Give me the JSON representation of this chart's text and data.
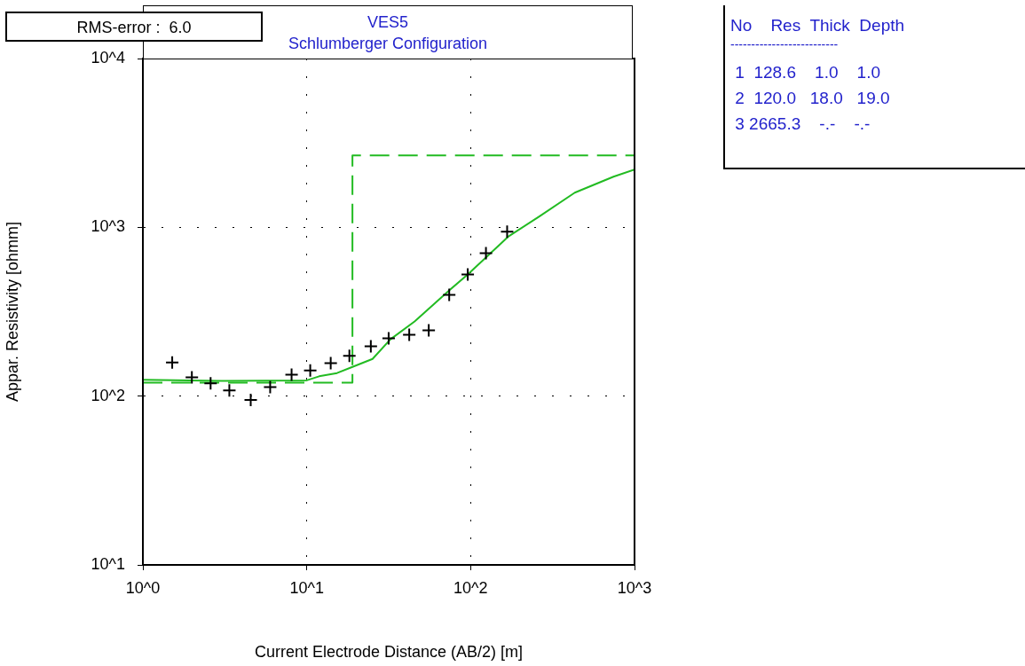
{
  "chart_data": {
    "type": "scatter",
    "title": "VES5",
    "subtitle": "Schlumberger Configuration",
    "xlabel": "Current Electrode Distance (AB/2) [m]",
    "ylabel": "Appar. Resistivity [ohmm]",
    "series": [
      {
        "color": "#000000",
        "marker": "cross",
        "x": [
          1.51,
          1.99,
          2.59,
          3.37,
          4.55,
          5.98,
          8.08,
          10.5,
          14.0,
          18.2,
          24.6,
          31.6,
          42.2,
          55.5,
          74,
          96,
          124,
          167
        ],
        "values": [
          158,
          129,
          119,
          108,
          95,
          113,
          134,
          142,
          157,
          173,
          197,
          220,
          231,
          245,
          398,
          526,
          703,
          942
        ]
      },
      {
        "type": "line",
        "color": "#22bb22",
        "marker": "none",
        "line_style": "solid",
        "x": [
          1,
          3,
          10,
          11.9,
          15.3,
          19,
          25.2,
          32.4,
          45.5,
          75,
          96,
          171,
          261,
          432,
          744,
          1000
        ],
        "values": [
          125,
          123,
          124,
          131,
          137,
          149,
          166,
          217,
          277,
          428,
          526,
          886,
          1156,
          1604,
          1995,
          2198
        ]
      },
      {
        "type": "line",
        "color": "#22bb22",
        "marker": "none",
        "line_style": "dashed",
        "x": [
          1,
          19,
          19,
          1000
        ],
        "values": [
          120,
          120,
          2665.3,
          2665.3
        ]
      }
    ],
    "log": "xy",
    "xlim": [
      1,
      1000
    ],
    "ylim": [
      10,
      10000
    ],
    "xticks": [
      {
        "value": 1,
        "label": "10^0"
      },
      {
        "value": 10,
        "label": "10^1"
      },
      {
        "value": 100,
        "label": "10^2"
      },
      {
        "value": 1000,
        "label": "10^3"
      }
    ],
    "yticks": [
      {
        "value": 10,
        "label": "10^1"
      },
      {
        "value": 100,
        "label": "10^2"
      },
      {
        "value": 1000,
        "label": "10^3"
      },
      {
        "value": 10000,
        "label": "10^4"
      }
    ],
    "grid": true,
    "legend": false,
    "annotations": [
      "RMS-error :  6.0",
      "No    Res  Thick  Depth",
      "--------------------------",
      " 1  128.6    1.0    1.0",
      " 2  120.0   18.0   19.0",
      " 3 2665.3    -.-    -.-"
    ]
  }
}
